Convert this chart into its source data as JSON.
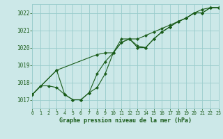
{
  "title": "Graphe pression niveau de la mer (hPa)",
  "bg_color": "#cce8e8",
  "grid_color": "#99cccc",
  "line_color": "#1a5c1a",
  "xlim": [
    0,
    23
  ],
  "ylim": [
    1016.5,
    1022.5
  ],
  "yticks": [
    1017,
    1018,
    1019,
    1020,
    1021,
    1022
  ],
  "xticks": [
    0,
    1,
    2,
    3,
    4,
    5,
    6,
    7,
    8,
    9,
    10,
    11,
    12,
    13,
    14,
    15,
    16,
    17,
    18,
    19,
    20,
    21,
    22,
    23
  ],
  "series1_x": [
    0,
    1,
    2,
    3,
    4,
    5,
    6,
    7,
    8,
    9,
    10,
    11,
    12,
    13,
    14,
    15,
    16,
    17,
    18,
    19,
    20,
    21,
    22,
    23
  ],
  "series1_y": [
    1017.3,
    1017.8,
    1017.8,
    1017.7,
    1017.3,
    1017.0,
    1017.0,
    1017.4,
    1017.7,
    1018.5,
    1019.7,
    1020.3,
    1020.5,
    1020.1,
    1020.0,
    1020.5,
    1020.9,
    1021.2,
    1021.5,
    1021.7,
    1022.0,
    1022.0,
    1022.3,
    1022.3
  ],
  "series2_x": [
    0,
    3,
    4,
    5,
    6,
    7,
    8,
    9,
    10,
    11,
    12,
    13,
    14,
    15,
    16,
    17,
    18,
    19,
    20,
    21,
    22,
    23
  ],
  "series2_y": [
    1017.3,
    1018.7,
    1017.3,
    1017.0,
    1017.0,
    1017.4,
    1018.5,
    1019.2,
    1019.7,
    1020.5,
    1020.5,
    1020.0,
    1020.0,
    1020.5,
    1020.9,
    1021.2,
    1021.5,
    1021.7,
    1022.0,
    1022.0,
    1022.3,
    1022.3
  ],
  "series3_x": [
    0,
    3,
    8,
    9,
    10,
    11,
    12,
    13,
    14,
    15,
    16,
    17,
    18,
    19,
    20,
    21,
    22,
    23
  ],
  "series3_y": [
    1017.3,
    1018.7,
    1019.6,
    1019.7,
    1019.7,
    1020.3,
    1020.5,
    1020.5,
    1020.7,
    1020.9,
    1021.1,
    1021.3,
    1021.5,
    1021.7,
    1022.0,
    1022.2,
    1022.3,
    1022.3
  ]
}
